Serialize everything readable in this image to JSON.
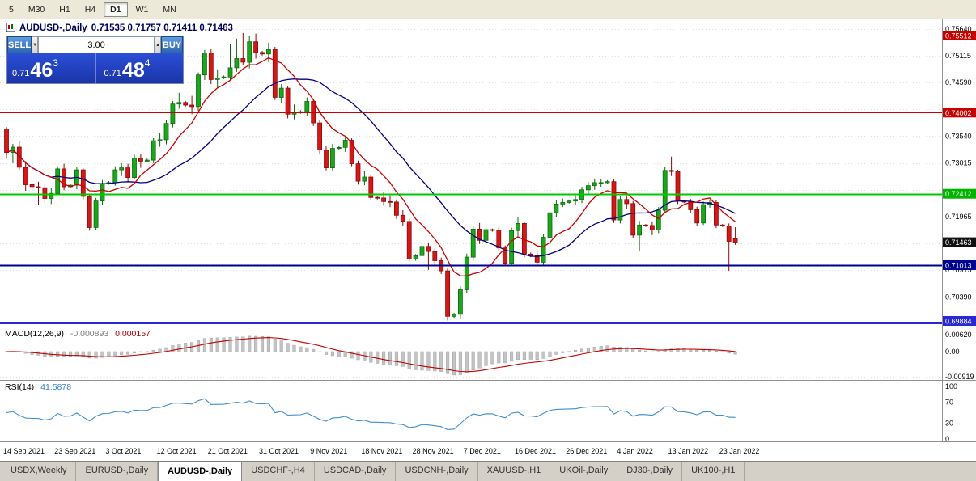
{
  "toolbar": {
    "periods": [
      "5",
      "M30",
      "H1",
      "H4",
      "D1",
      "W1",
      "MN"
    ],
    "active_period": "D1"
  },
  "chart_header": {
    "symbol": "AUDUSD-,Daily",
    "ohlc": "0.71535 0.71757 0.71411 0.71463"
  },
  "icons": {
    "volume_down": "▼",
    "volume_up": "▲"
  },
  "trade_widget": {
    "sell_label": "SELL",
    "buy_label": "BUY",
    "volume": "3.00",
    "bid": {
      "prefix": "0.71",
      "big": "46",
      "sup": "3"
    },
    "ask": {
      "prefix": "0.71",
      "big": "48",
      "sup": "4"
    }
  },
  "indicators": {
    "macd": {
      "label": "MACD(12,26,9)",
      "value_main": "-0.000893",
      "value_signal": "0.000157",
      "axis": [
        {
          "text": "0.00620",
          "value": 0.0062
        },
        {
          "text": "0.00",
          "value": 0
        },
        {
          "text": "-0.00919",
          "value": -0.00919
        }
      ]
    },
    "rsi": {
      "label": "RSI(14)",
      "value": "41.5878",
      "axis": [
        {
          "text": "100",
          "value": 100
        },
        {
          "text": "70",
          "value": 70
        },
        {
          "text": "30",
          "value": 30
        },
        {
          "text": "0",
          "value": 0
        }
      ],
      "levels": [
        70,
        30
      ]
    }
  },
  "tabs": [
    {
      "label": "USDX,Weekly"
    },
    {
      "label": "EURUSD-,Daily"
    },
    {
      "label": "AUDUSD-,Daily",
      "active": true
    },
    {
      "label": "USDCHF-,H4"
    },
    {
      "label": "USDCAD-,Daily"
    },
    {
      "label": "USDCNH-,Daily"
    },
    {
      "label": "XAUUSD-,H1"
    },
    {
      "label": "UKOil-,Daily"
    },
    {
      "label": "DJ30-,Daily"
    },
    {
      "label": "UK100-,H1"
    }
  ],
  "chart_data": {
    "type": "candlestick",
    "symbol": "AUDUSD-",
    "timeframe": "Daily",
    "title": "AUDUSD-,Daily 0.71535 0.71757 0.71411 0.71463",
    "up_color": "#1ca61c",
    "up_border": "#0c6b0c",
    "down_color": "#d41717",
    "down_border": "#8d0808",
    "ma_overlays": [
      {
        "period": 8,
        "color": "#cc0000"
      },
      {
        "period": 20,
        "color": "#000080"
      }
    ],
    "macd_histogram_color": "#c4c4c4",
    "macd_signal_color": "#c00000",
    "rsi_color": "#3e8ed0",
    "hlines": [
      {
        "price": 0.75512,
        "color": "#c80000",
        "width": 1.2
      },
      {
        "price": 0.74002,
        "color": "#c80000",
        "width": 1.2
      },
      {
        "price": 0.72412,
        "color": "#00c800",
        "width": 2
      },
      {
        "price": 0.71463,
        "color": "#707070",
        "width": 1,
        "dash": true
      },
      {
        "price": 0.71013,
        "color": "#000090",
        "width": 2
      },
      {
        "price": 0.69884,
        "color": "#2828d4",
        "width": 3
      }
    ],
    "price_badges": [
      {
        "text": "0.75512",
        "price": 0.75512,
        "color": "#c80000"
      },
      {
        "text": "0.74002",
        "price": 0.74002,
        "color": "#c80000"
      },
      {
        "text": "0.72412",
        "price": 0.72412,
        "color": "#00b400"
      },
      {
        "text": "0.71463",
        "price": 0.71463,
        "color": "#111111"
      },
      {
        "text": "0.71013",
        "price": 0.71013,
        "color": "#000090"
      },
      {
        "text": "0.69884",
        "price": 0.69884,
        "color": "#2828d4"
      }
    ],
    "y_axis_labels": [
      {
        "text": "0.75640",
        "price": 0.7564
      },
      {
        "text": "0.75115",
        "price": 0.75115
      },
      {
        "text": "0.74590",
        "price": 0.7459
      },
      {
        "text": "0.73540",
        "price": 0.7354
      },
      {
        "text": "0.73015",
        "price": 0.73015
      },
      {
        "text": "0.71965",
        "price": 0.71965
      },
      {
        "text": "0.70915",
        "price": 0.70915
      },
      {
        "text": "0.70390",
        "price": 0.7039
      }
    ],
    "y_gridlines": [
      0.7564,
      0.75115,
      0.7459,
      0.74065,
      0.7354,
      0.73015,
      0.7249,
      0.71965,
      0.7144,
      0.70915,
      0.7039,
      0.69865
    ],
    "x_labels": [
      "14 Sep 2021",
      "23 Sep 2021",
      "3 Oct 2021",
      "12 Oct 2021",
      "21 Oct 2021",
      "31 Oct 2021",
      "9 Nov 2021",
      "18 Nov 2021",
      "28 Nov 2021",
      "7 Dec 2021",
      "16 Dec 2021",
      "26 Dec 2021",
      "4 Jan 2022",
      "13 Jan 2022",
      "23 Jan 2022"
    ],
    "x_label_step": 8,
    "candles": [
      [
        0.7368,
        0.7372,
        0.731,
        0.7322
      ],
      [
        0.7322,
        0.7339,
        0.7301,
        0.73325
      ],
      [
        0.73325,
        0.7344,
        0.7288,
        0.7293
      ],
      [
        0.7293,
        0.7305,
        0.7247,
        0.7259
      ],
      [
        0.7259,
        0.7262,
        0.7252,
        0.7255
      ],
      [
        0.7255,
        0.7265,
        0.722,
        0.7253
      ],
      [
        0.7253,
        0.726,
        0.7223,
        0.7232
      ],
      [
        0.7232,
        0.7253,
        0.7221,
        0.7242
      ],
      [
        0.7242,
        0.7295,
        0.7239,
        0.729
      ],
      [
        0.729,
        0.73,
        0.7248,
        0.7255
      ],
      [
        0.7255,
        0.7261,
        0.7253,
        0.7258
      ],
      [
        0.7258,
        0.7293,
        0.725,
        0.7288
      ],
      [
        0.7288,
        0.7291,
        0.723,
        0.7236
      ],
      [
        0.7236,
        0.724,
        0.7169,
        0.7175
      ],
      [
        0.7175,
        0.7233,
        0.717,
        0.7227
      ],
      [
        0.7227,
        0.7268,
        0.7219,
        0.7261
      ],
      [
        0.7261,
        0.7266,
        0.7259,
        0.7263
      ],
      [
        0.7263,
        0.7295,
        0.7257,
        0.7288
      ],
      [
        0.7288,
        0.7301,
        0.7276,
        0.7292
      ],
      [
        0.7292,
        0.73,
        0.7265,
        0.7273
      ],
      [
        0.7273,
        0.7318,
        0.7269,
        0.7311
      ],
      [
        0.7311,
        0.7319,
        0.7292,
        0.7305
      ],
      [
        0.7305,
        0.731,
        0.7303,
        0.7307
      ],
      [
        0.7307,
        0.735,
        0.7301,
        0.7345
      ],
      [
        0.7345,
        0.736,
        0.7333,
        0.7347
      ],
      [
        0.7347,
        0.7385,
        0.7338,
        0.7379
      ],
      [
        0.7379,
        0.7423,
        0.7371,
        0.7417
      ],
      [
        0.7417,
        0.7439,
        0.7408,
        0.742
      ],
      [
        0.742,
        0.7423,
        0.7412,
        0.7415
      ],
      [
        0.7415,
        0.7433,
        0.7397,
        0.7412
      ],
      [
        0.7412,
        0.7479,
        0.7404,
        0.7474
      ],
      [
        0.7474,
        0.7523,
        0.7464,
        0.7517
      ],
      [
        0.7517,
        0.7525,
        0.7456,
        0.7465
      ],
      [
        0.7465,
        0.7485,
        0.7449,
        0.7468
      ],
      [
        0.7468,
        0.7473,
        0.7466,
        0.747
      ],
      [
        0.747,
        0.7535,
        0.7464,
        0.7488
      ],
      [
        0.7488,
        0.7545,
        0.748,
        0.7506
      ],
      [
        0.7506,
        0.7556,
        0.7493,
        0.7499
      ],
      [
        0.7499,
        0.755,
        0.7487,
        0.7539
      ],
      [
        0.7539,
        0.7555,
        0.7506,
        0.7518
      ],
      [
        0.7518,
        0.7521,
        0.7512,
        0.7515
      ],
      [
        0.7515,
        0.7537,
        0.7499,
        0.7524
      ],
      [
        0.7524,
        0.7529,
        0.7425,
        0.743
      ],
      [
        0.743,
        0.7456,
        0.7418,
        0.7448
      ],
      [
        0.7448,
        0.7453,
        0.7389,
        0.7397
      ],
      [
        0.7397,
        0.7416,
        0.7387,
        0.74
      ],
      [
        0.74,
        0.7405,
        0.7398,
        0.7402
      ],
      [
        0.7402,
        0.743,
        0.7393,
        0.7422
      ],
      [
        0.7422,
        0.7427,
        0.7374,
        0.738
      ],
      [
        0.738,
        0.7385,
        0.732,
        0.7327
      ],
      [
        0.7327,
        0.7334,
        0.7287,
        0.7292
      ],
      [
        0.7292,
        0.7339,
        0.7286,
        0.733
      ],
      [
        0.733,
        0.7335,
        0.7328,
        0.7332
      ],
      [
        0.7332,
        0.7354,
        0.7323,
        0.7346
      ],
      [
        0.7346,
        0.735,
        0.7295,
        0.73
      ],
      [
        0.73,
        0.7306,
        0.7259,
        0.7266
      ],
      [
        0.7266,
        0.7285,
        0.7258,
        0.7274
      ],
      [
        0.7274,
        0.7279,
        0.7228,
        0.7234
      ],
      [
        0.7234,
        0.7237,
        0.723,
        0.7233
      ],
      [
        0.7233,
        0.7244,
        0.7218,
        0.7226
      ],
      [
        0.7226,
        0.7238,
        0.7215,
        0.7225
      ],
      [
        0.7225,
        0.723,
        0.7192,
        0.7199
      ],
      [
        0.7199,
        0.7209,
        0.7179,
        0.7187
      ],
      [
        0.7187,
        0.7192,
        0.7107,
        0.7113
      ],
      [
        0.7113,
        0.7123,
        0.711,
        0.712
      ],
      [
        0.712,
        0.7145,
        0.7113,
        0.7138
      ],
      [
        0.7138,
        0.7146,
        0.7092,
        0.7128
      ],
      [
        0.7128,
        0.7134,
        0.7101,
        0.711
      ],
      [
        0.711,
        0.7116,
        0.7084,
        0.709
      ],
      [
        0.709,
        0.7095,
        0.6993,
        0.7001
      ],
      [
        0.7001,
        0.7008,
        0.6998,
        0.7005
      ],
      [
        0.7005,
        0.706,
        0.6997,
        0.7053
      ],
      [
        0.7053,
        0.7124,
        0.7047,
        0.7117
      ],
      [
        0.7117,
        0.7178,
        0.711,
        0.7172
      ],
      [
        0.7172,
        0.7184,
        0.7143,
        0.715
      ],
      [
        0.715,
        0.7178,
        0.7138,
        0.7171
      ],
      [
        0.7171,
        0.7173,
        0.7167,
        0.717
      ],
      [
        0.717,
        0.7175,
        0.7128,
        0.7135
      ],
      [
        0.7135,
        0.714,
        0.7099,
        0.7105
      ],
      [
        0.7105,
        0.7175,
        0.7099,
        0.7169
      ],
      [
        0.7169,
        0.7196,
        0.7158,
        0.7183
      ],
      [
        0.7183,
        0.7187,
        0.7117,
        0.7123
      ],
      [
        0.7123,
        0.7126,
        0.7117,
        0.712
      ],
      [
        0.712,
        0.7129,
        0.7099,
        0.7107
      ],
      [
        0.7107,
        0.7162,
        0.7101,
        0.7156
      ],
      [
        0.7156,
        0.721,
        0.715,
        0.7204
      ],
      [
        0.7204,
        0.7228,
        0.7196,
        0.7221
      ],
      [
        0.7221,
        0.7232,
        0.7215,
        0.7224
      ],
      [
        0.7224,
        0.723,
        0.7222,
        0.7227
      ],
      [
        0.7227,
        0.7238,
        0.7219,
        0.723
      ],
      [
        0.723,
        0.7255,
        0.7223,
        0.7249
      ],
      [
        0.7249,
        0.7264,
        0.7241,
        0.7257
      ],
      [
        0.7257,
        0.7271,
        0.7249,
        0.7263
      ],
      [
        0.7263,
        0.727,
        0.7255,
        0.7263
      ],
      [
        0.7263,
        0.7268,
        0.7261,
        0.7265
      ],
      [
        0.7265,
        0.7269,
        0.7184,
        0.719
      ],
      [
        0.719,
        0.7237,
        0.7183,
        0.723
      ],
      [
        0.723,
        0.7238,
        0.7212,
        0.7222
      ],
      [
        0.7222,
        0.7227,
        0.7154,
        0.716
      ],
      [
        0.716,
        0.7188,
        0.7129,
        0.718
      ],
      [
        0.718,
        0.7182,
        0.7176,
        0.7179
      ],
      [
        0.7179,
        0.7187,
        0.716,
        0.717
      ],
      [
        0.717,
        0.7215,
        0.7164,
        0.7209
      ],
      [
        0.7209,
        0.7293,
        0.7203,
        0.7287
      ],
      [
        0.7287,
        0.7314,
        0.7276,
        0.7285
      ],
      [
        0.7285,
        0.7288,
        0.7221,
        0.7227
      ],
      [
        0.7227,
        0.7229,
        0.7223,
        0.7225
      ],
      [
        0.7225,
        0.7231,
        0.7203,
        0.721
      ],
      [
        0.721,
        0.7216,
        0.7178,
        0.7184
      ],
      [
        0.7184,
        0.7226,
        0.718,
        0.722
      ],
      [
        0.722,
        0.723,
        0.7214,
        0.7224
      ],
      [
        0.7224,
        0.7229,
        0.7174,
        0.718
      ],
      [
        0.718,
        0.7182,
        0.7176,
        0.7178
      ],
      [
        0.7178,
        0.7183,
        0.709,
        0.7148
      ],
      [
        0.71535,
        0.71757,
        0.71411,
        0.71463
      ]
    ]
  }
}
